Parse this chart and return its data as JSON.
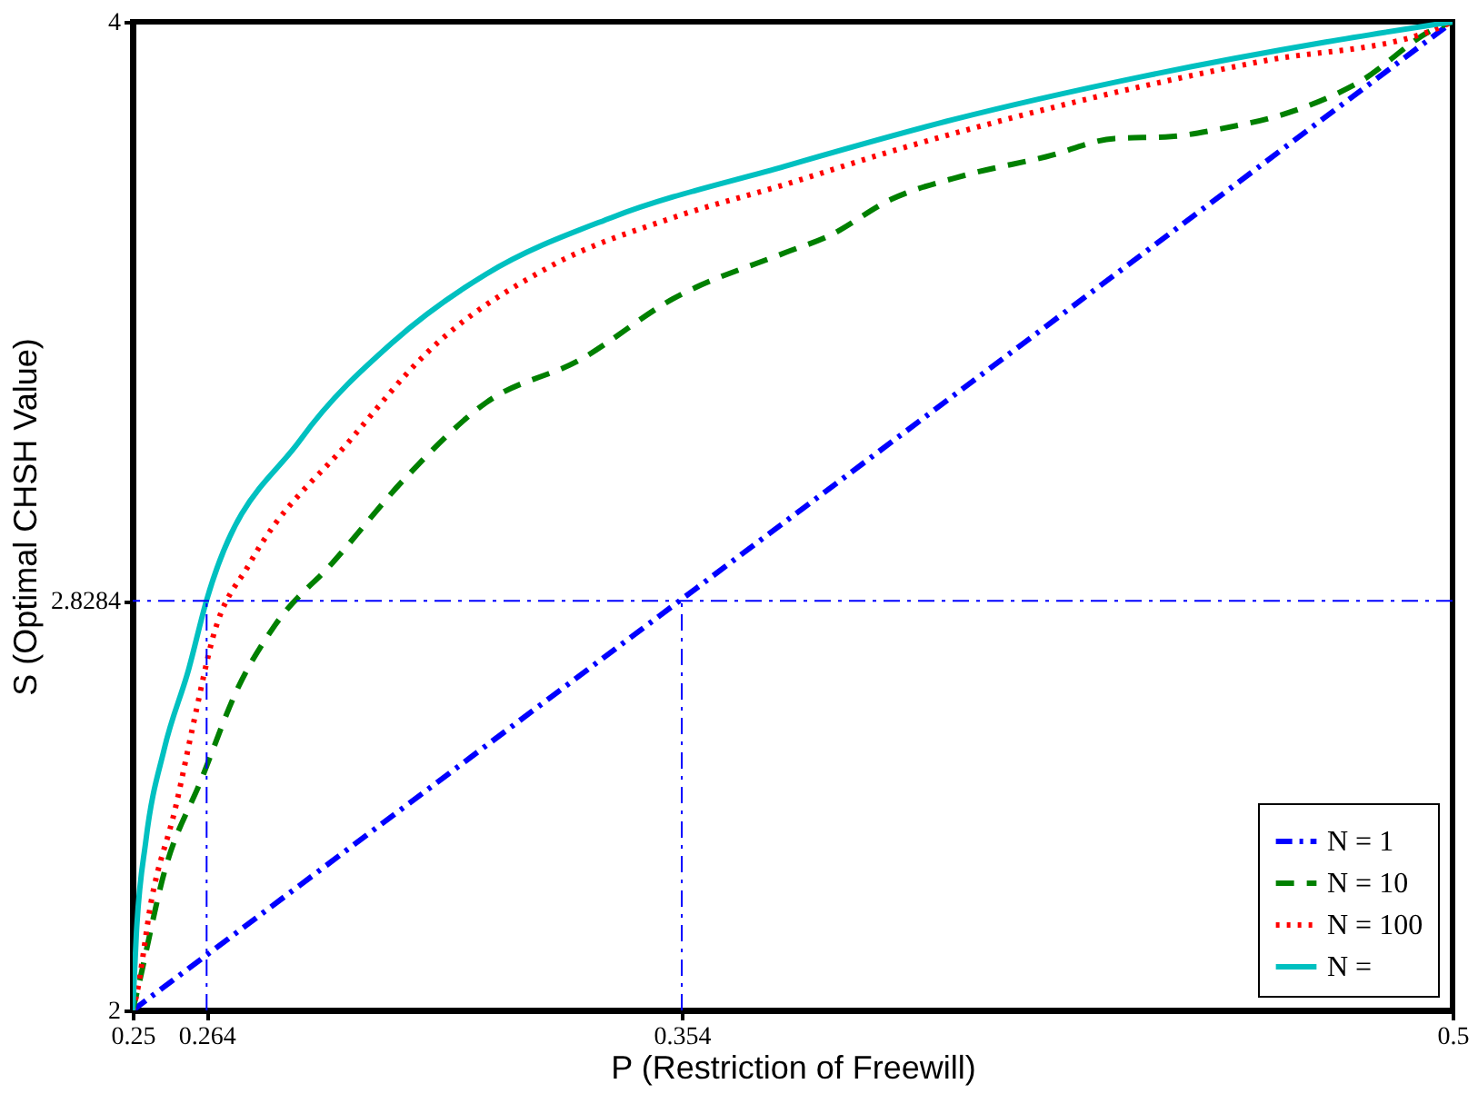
{
  "chart_data": {
    "type": "line",
    "xlabel": "P (Restriction of Freewill)",
    "ylabel": "S (Optimal CHSH Value)",
    "xlim": [
      0.25,
      0.5
    ],
    "ylim": [
      2,
      4
    ],
    "xticks": [
      0.25,
      0.264,
      0.354,
      0.5
    ],
    "yticks": [
      2,
      2.8284,
      4
    ],
    "legend": "bottom right",
    "grid": false,
    "ref_lines": [
      {
        "axis": "y",
        "value": 2.8284,
        "color": "#0000ff",
        "line_style": "dashdot"
      }
    ],
    "series": [
      {
        "name": "N = 1",
        "color": "#0000ff",
        "line_style": "dashdot",
        "x": [
          0.25,
          0.5
        ],
        "values": [
          2,
          4
        ]
      },
      {
        "name": "N = 10",
        "color": "#008000",
        "line_style": "dashed",
        "x": [
          0.25,
          0.251,
          0.256,
          0.263,
          0.27,
          0.277,
          0.2878,
          0.3019,
          0.317,
          0.3347,
          0.3524,
          0.3736,
          0.3817,
          0.3937,
          0.4078,
          0.423,
          0.436,
          0.4467,
          0.4558,
          0.47,
          0.482,
          0.4972,
          0.5
        ],
        "values": [
          2,
          2.045,
          2.28,
          2.467,
          2.654,
          2.78,
          2.905,
          3.08,
          3.23,
          3.316,
          3.44,
          3.533,
          3.566,
          3.641,
          3.69,
          3.727,
          3.764,
          3.768,
          3.783,
          3.82,
          3.876,
          3.989,
          4
        ]
      },
      {
        "name": "N = 100",
        "color": "#ff0000",
        "line_style": "dotted",
        "x": [
          0.25,
          0.2507,
          0.2535,
          0.2581,
          0.2617,
          0.2652,
          0.2722,
          0.2913,
          0.3054,
          0.3287,
          0.3524,
          0.3736,
          0.3937,
          0.429,
          0.4643,
          0.4947,
          0.5
        ],
        "values": [
          2,
          2.03,
          2.22,
          2.41,
          2.59,
          2.755,
          2.905,
          3.155,
          3.327,
          3.503,
          3.604,
          3.671,
          3.738,
          3.839,
          3.921,
          3.977,
          4
        ]
      },
      {
        "name": "N =",
        "color": "#00c0c0",
        "line_style": "solid",
        "x": [
          0.25,
          0.2507,
          0.2525,
          0.256,
          0.2606,
          0.264,
          0.2818,
          0.2994,
          0.317,
          0.3407,
          0.3736,
          0.4054,
          0.4407,
          0.476,
          0.5
        ],
        "values": [
          2,
          2.157,
          2.344,
          2.53,
          2.69,
          2.83,
          3.155,
          3.353,
          3.49,
          3.604,
          3.708,
          3.802,
          3.888,
          3.959,
          4
        ]
      },
      {
        "color": "#0000ff",
        "line_style": "dashdot",
        "x": [
          0.264,
          0.264
        ],
        "values": [
          2,
          2.83
        ]
      },
      {
        "color": "#0000ff",
        "line_style": "dashdot",
        "x": [
          0.354,
          0.354
        ],
        "values": [
          2,
          2.83
        ]
      }
    ]
  }
}
